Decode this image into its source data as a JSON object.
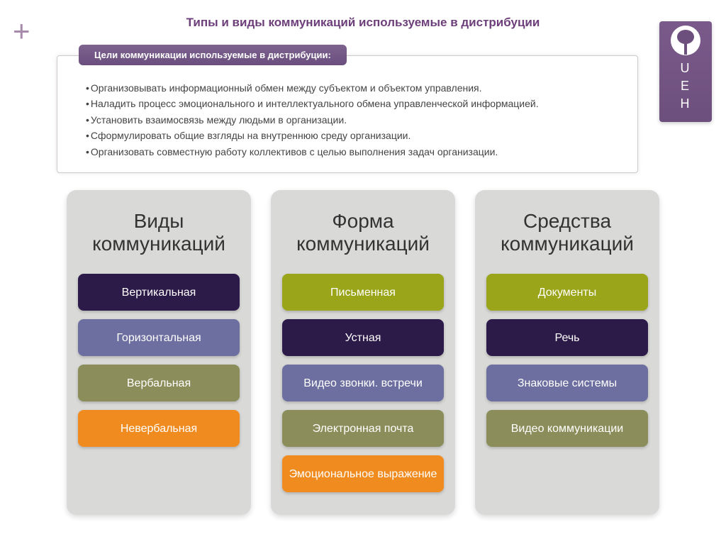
{
  "plus_symbol": "+",
  "page_title": "Типы и виды коммуникаций используемые в дистрибуции",
  "logo": {
    "letters": [
      "U",
      "E",
      "H"
    ]
  },
  "goals": {
    "tab_label": "Цели коммуникации используемые в дистрибуции:",
    "items": [
      "Организовывать информационный обмен между субъектом и объектом управления.",
      "Наладить процесс эмоционального и интеллектуального обмена управленческой информацией.",
      "Установить взаимосвязь между людьми в организации.",
      "Сформулировать общие взгляды на внутреннюю среду организации.",
      "Организовать совместную работу коллективов с целью выполнения задач организации."
    ]
  },
  "columns": [
    {
      "title": "Виды коммуникаций",
      "pills": [
        {
          "label": "Вертикальная",
          "color": "#2c1a48"
        },
        {
          "label": "Горизонтальная",
          "color": "#6d6fa0"
        },
        {
          "label": "Вербальная",
          "color": "#8b8e5a"
        },
        {
          "label": "Невербальная",
          "color": "#f08b1f"
        }
      ]
    },
    {
      "title": "Форма коммуникаций",
      "pills": [
        {
          "label": "Письменная",
          "color": "#9aa51a"
        },
        {
          "label": "Устная",
          "color": "#2c1a48"
        },
        {
          "label": "Видео звонки. встречи",
          "color": "#6d6fa0"
        },
        {
          "label": "Электронная почта",
          "color": "#8b8e5a"
        },
        {
          "label": "Эмоциональное выражение",
          "color": "#f08b1f"
        }
      ]
    },
    {
      "title": "Средства коммуникаций",
      "pills": [
        {
          "label": "Документы",
          "color": "#9aa51a"
        },
        {
          "label": "Речь",
          "color": "#2c1a48"
        },
        {
          "label": "Знаковые системы",
          "color": "#6d6fa0"
        },
        {
          "label": "Видео коммуникации",
          "color": "#8b8e5a"
        }
      ]
    }
  ],
  "styling": {
    "type": "infographic",
    "background_color": "#ffffff",
    "title_color": "#6d3f7a",
    "plus_color": "#a689ab",
    "column_bg": "#d9d9d8",
    "column_border_radius": 14,
    "pill_border_radius": 8,
    "pill_text_color": "#ffffff",
    "logo_bg": "#6d4f7d",
    "goals_tab_bg": "#6a4f7e",
    "column_title_fontsize": 28,
    "pill_fontsize": 16,
    "goals_fontsize": 14
  }
}
